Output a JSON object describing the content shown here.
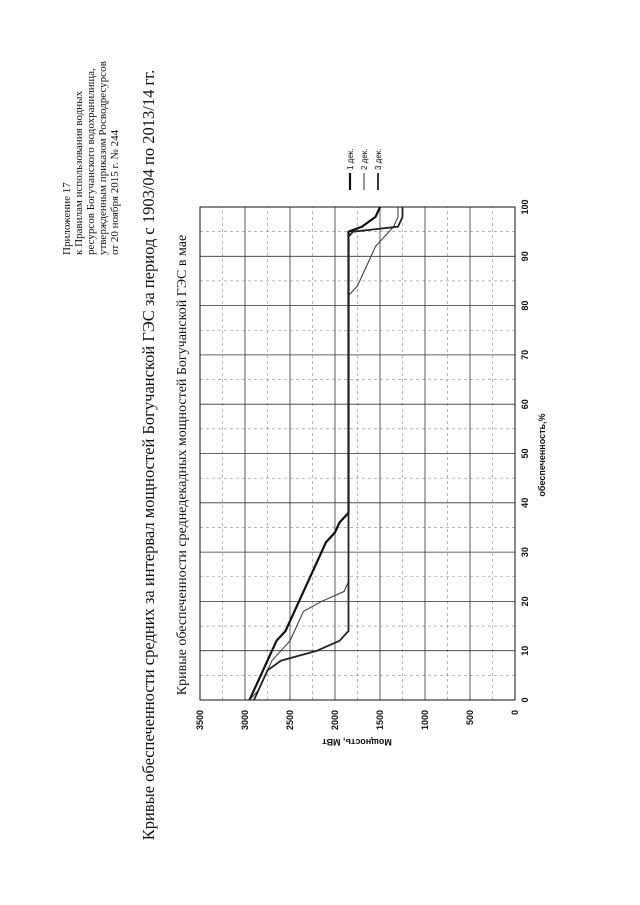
{
  "header": {
    "lines": [
      "Приложение 17",
      "к Правилам использования водных",
      "ресурсов Богучанского водохранилища,",
      "утвержденным приказом Росводресурсов",
      "от 20 ноября 2015 г. № 244"
    ]
  },
  "chart_data": {
    "type": "line",
    "title": "Кривые обеспеченности средних за интервал мощностей Богучанской ГЭС за период с 1903/04 по 2013/14 гг.",
    "subtitle": "Кривые обеспеченности среднедекадных мощностей Богучанской ГЭС в мае",
    "x_label": "обеспеченность,%",
    "y_label": "Мощность, МВт",
    "x": [
      0,
      2,
      4,
      6,
      8,
      10,
      12,
      14,
      16,
      18,
      20,
      22,
      24,
      26,
      28,
      30,
      32,
      34,
      36,
      38,
      40,
      50,
      60,
      70,
      80,
      82,
      84,
      86,
      88,
      90,
      92,
      94,
      95,
      96,
      98,
      100
    ],
    "series": [
      {
        "name": "1 дек.",
        "color": "#111111",
        "values": [
          2950,
          2900,
          2850,
          2800,
          2750,
          2700,
          2650,
          2550,
          2500,
          2450,
          2400,
          2350,
          2300,
          2250,
          2200,
          2150,
          2100,
          2000,
          1950,
          1850,
          1850,
          1850,
          1850,
          1850,
          1850,
          1850,
          1850,
          1850,
          1850,
          1850,
          1850,
          1850,
          1850,
          1700,
          1550,
          1500
        ]
      },
      {
        "name": "2 дек.",
        "color": "#333333",
        "values": [
          2950,
          2850,
          2800,
          2750,
          2700,
          2600,
          2500,
          2450,
          2400,
          2350,
          2150,
          1900,
          1850,
          1850,
          1850,
          1850,
          1850,
          1850,
          1850,
          1850,
          1850,
          1850,
          1850,
          1850,
          1850,
          1850,
          1750,
          1700,
          1650,
          1600,
          1550,
          1450,
          1400,
          1350,
          1300,
          1300
        ]
      },
      {
        "name": "3 дек.",
        "color": "#222222",
        "values": [
          2900,
          2850,
          2800,
          2750,
          2600,
          2200,
          1950,
          1850,
          1850,
          1850,
          1850,
          1850,
          1850,
          1850,
          1850,
          1850,
          1850,
          1850,
          1850,
          1850,
          1850,
          1850,
          1850,
          1850,
          1850,
          1850,
          1850,
          1850,
          1850,
          1850,
          1850,
          1850,
          1800,
          1300,
          1250,
          1250
        ]
      }
    ],
    "xlim": [
      0,
      100
    ],
    "xticks": [
      0,
      10,
      20,
      30,
      40,
      50,
      60,
      70,
      80,
      90,
      100
    ],
    "ylim": [
      0,
      3500
    ],
    "yticks": [
      0,
      500,
      1000,
      1500,
      2000,
      2500,
      3000,
      3500
    ],
    "grid": true,
    "legend": "right"
  }
}
